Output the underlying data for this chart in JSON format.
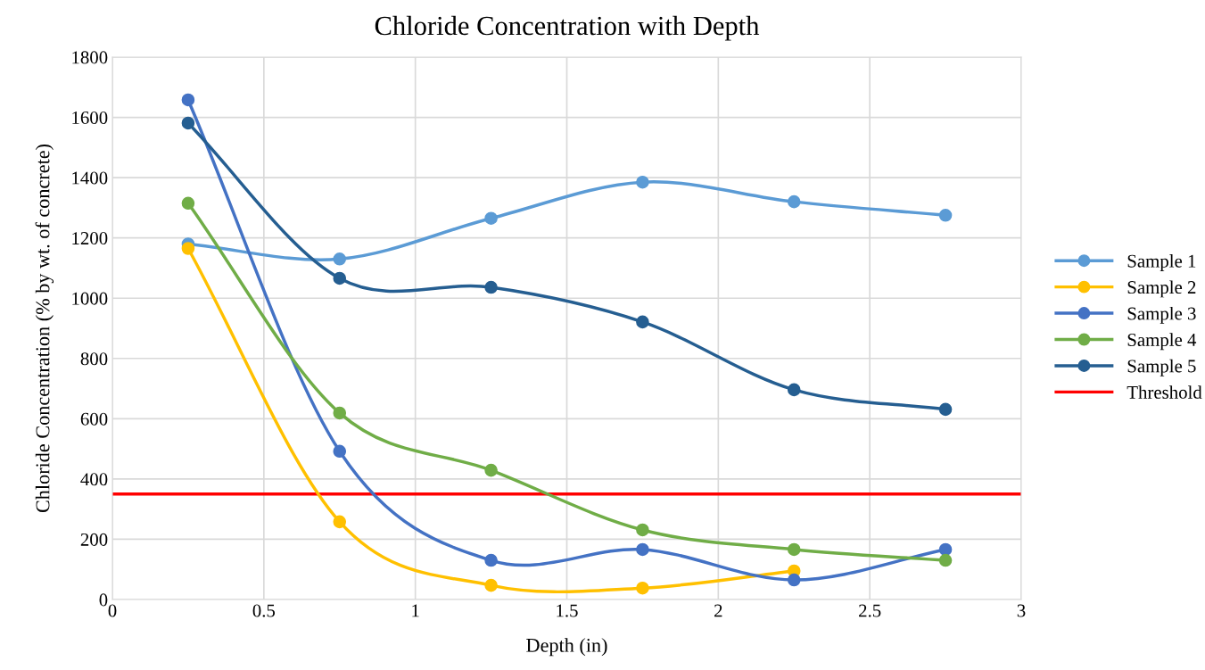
{
  "chart_data": {
    "type": "line",
    "title": "Chloride Concentration with Depth",
    "xlabel": "Depth (in)",
    "ylabel": "Chloride Concentration (% by wt. of concrete)",
    "x": [
      0.25,
      0.75,
      1.25,
      1.75,
      2.25,
      2.75
    ],
    "series": [
      {
        "name": "Sample 1",
        "color": "#5b9bd5",
        "values": [
          1180,
          1130,
          1265,
          1385,
          1320,
          1275
        ]
      },
      {
        "name": "Sample 2",
        "color": "#ffc000",
        "values": [
          1165,
          258,
          47,
          38,
          95,
          null
        ]
      },
      {
        "name": "Sample 3",
        "color": "#4472c4",
        "values": [
          1658,
          492,
          130,
          166,
          65,
          166
        ]
      },
      {
        "name": "Sample 4",
        "color": "#70ad47",
        "values": [
          1315,
          619,
          429,
          231,
          166,
          130
        ]
      },
      {
        "name": "Sample 5",
        "color": "#255e91",
        "values": [
          1581,
          1066,
          1036,
          921,
          696,
          631
        ]
      }
    ],
    "ref_lines": [
      {
        "axis": "y",
        "value": 350,
        "label": "Threshold",
        "color": "#ff0000",
        "line_style": "solid"
      }
    ],
    "xlim": [
      0,
      3
    ],
    "xticks": [
      0,
      0.5,
      1,
      1.5,
      2,
      2.5,
      3
    ],
    "ylim": [
      0,
      1800
    ],
    "yticks": [
      0,
      200,
      400,
      600,
      800,
      1000,
      1200,
      1400,
      1600,
      1800
    ],
    "grid": true,
    "legend": "right",
    "marker": "circle",
    "line_style": "solid"
  }
}
